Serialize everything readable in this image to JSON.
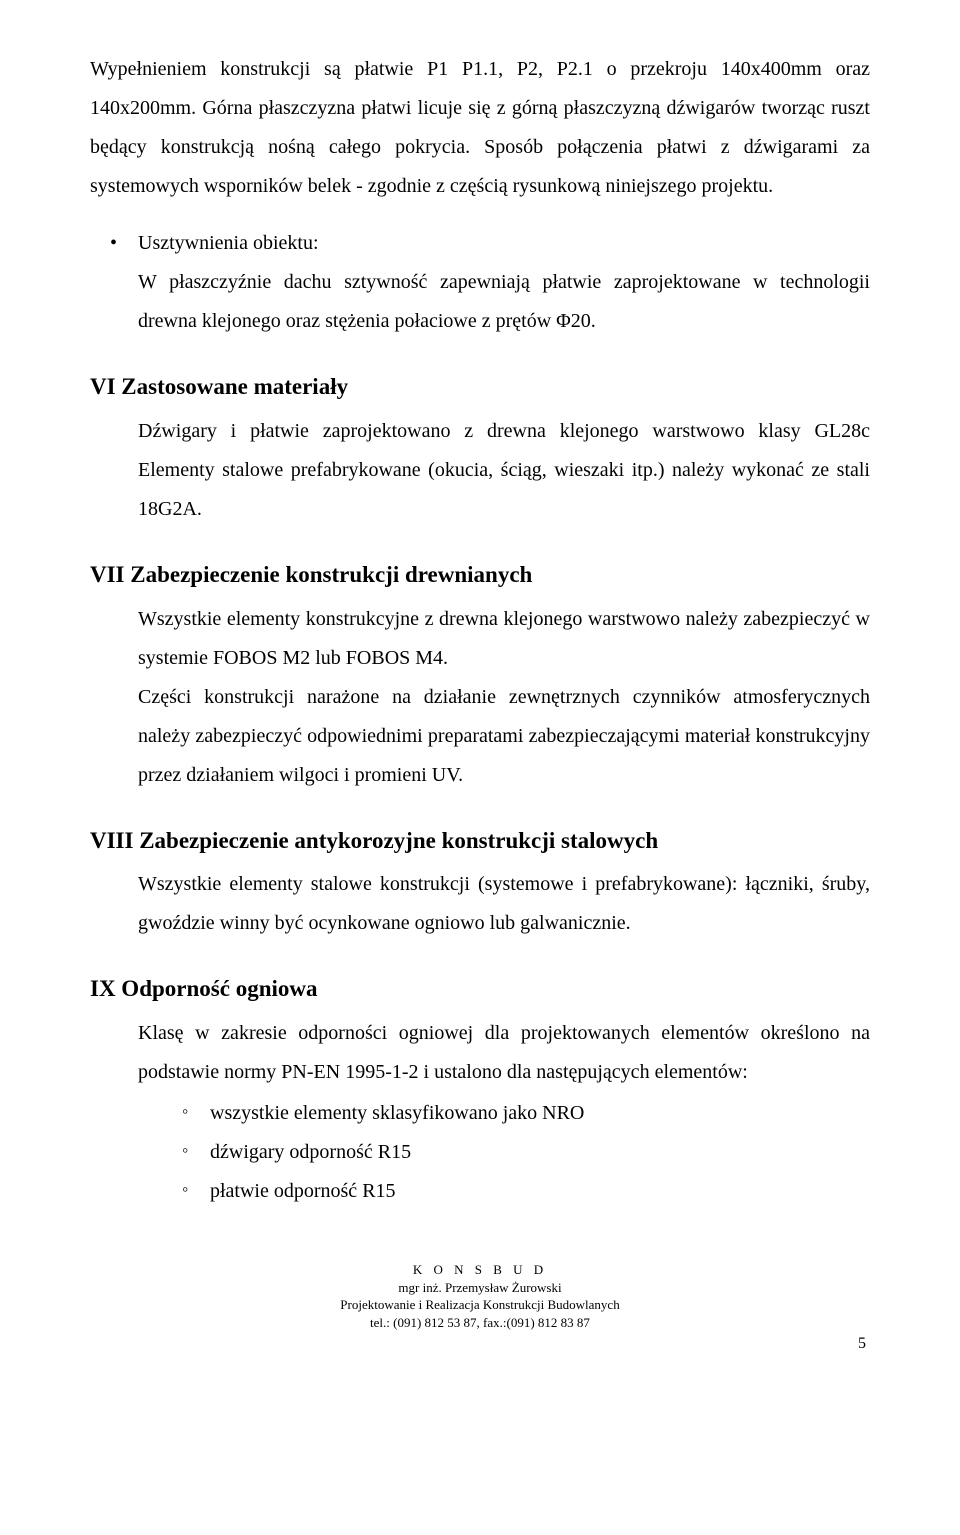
{
  "intro_para": "Wypełnieniem konstrukcji są płatwie P1 P1.1, P2, P2.1 o przekroju 140x400mm oraz 140x200mm. Górna płaszczyzna płatwi licuje się z górną płaszczyzną dźwigarów tworząc ruszt będący konstrukcją nośną całego pokrycia. Sposób połączenia płatwi z dźwigarami za systemowych wsporników belek - zgodnie z częścią rysunkową niniejszego projektu.",
  "bullet": {
    "head": "Usztywnienia obiektu:",
    "body": "W płaszczyźnie dachu sztywność zapewniają płatwie zaprojektowane w technologii drewna klejonego oraz stężenia połaciowe z prętów Φ20."
  },
  "sections": {
    "s6": {
      "title": "VI Zastosowane materiały",
      "body": "Dźwigary i płatwie zaprojektowano z drewna klejonego warstwowo klasy GL28c Elementy stalowe prefabrykowane (okucia, ściąg, wieszaki itp.) należy wykonać ze stali 18G2A."
    },
    "s7": {
      "title": "VII Zabezpieczenie konstrukcji drewnianych",
      "body1": "Wszystkie elementy konstrukcyjne z drewna klejonego warstwowo należy zabezpieczyć w systemie FOBOS M2 lub FOBOS M4.",
      "body2": "Części konstrukcji narażone na działanie zewnętrznych czynników atmosferycznych należy zabezpieczyć odpowiednimi preparatami zabezpieczającymi materiał konstrukcyjny przez działaniem wilgoci i promieni UV."
    },
    "s8": {
      "title": "VIII Zabezpieczenie antykorozyjne konstrukcji stalowych",
      "body": "Wszystkie elementy stalowe konstrukcji (systemowe i prefabrykowane): łączniki, śruby, gwoździe winny być ocynkowane ogniowo lub galwanicznie."
    },
    "s9": {
      "title": "IX Odporność ogniowa",
      "body": "Klasę w zakresie odporności ogniowej dla projektowanych elementów określono na podstawie normy PN-EN 1995-1-2 i ustalono dla następujących elementów:",
      "items": [
        "wszystkie elementy sklasyfikowano jako NRO",
        "dźwigary odporność R15",
        "płatwie odporność R15"
      ]
    }
  },
  "footer": {
    "org": "K O N S B U D",
    "name": "mgr inż. Przemysław Żurowski",
    "line3": "Projektowanie i Realizacja Konstrukcji Budowlanych",
    "line4": "tel.: (091) 812 53 87, fax.:(091) 812 83 87"
  },
  "page_number": "5"
}
